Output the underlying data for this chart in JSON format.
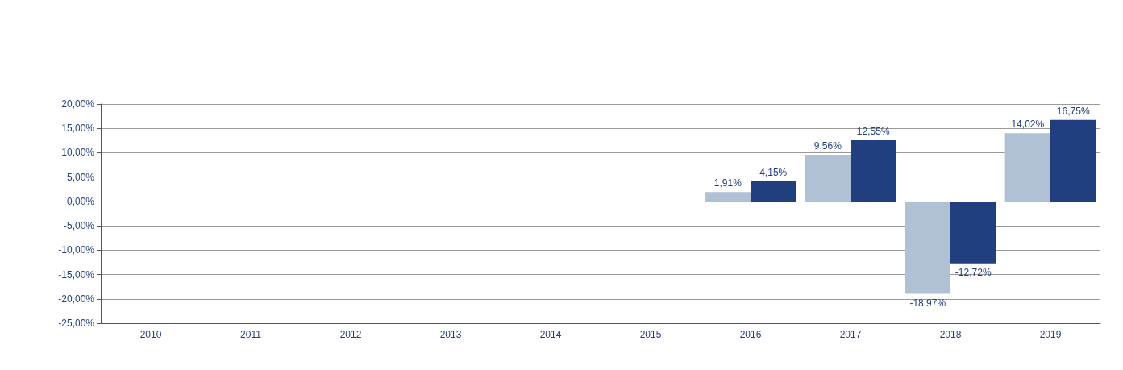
{
  "chart_data": {
    "type": "bar",
    "categories": [
      "2010",
      "2011",
      "2012",
      "2013",
      "2014",
      "2015",
      "2016",
      "2017",
      "2018",
      "2019"
    ],
    "series": [
      {
        "color": "#b0c1d6",
        "values": [
          null,
          null,
          null,
          null,
          null,
          null,
          1.91,
          9.56,
          -18.97,
          14.02
        ],
        "value_labels": [
          null,
          null,
          null,
          null,
          null,
          null,
          "1,91%",
          "9,56%",
          "-18,97%",
          "14,02%"
        ]
      },
      {
        "color": "#213f7f",
        "values": [
          null,
          null,
          null,
          null,
          null,
          null,
          4.15,
          12.55,
          -12.72,
          16.75
        ],
        "value_labels": [
          null,
          null,
          null,
          null,
          null,
          null,
          "4,15%",
          "12,55%",
          "-12,72%",
          "16,75%"
        ]
      }
    ],
    "ylim": [
      -25,
      20
    ],
    "yticks": [
      {
        "value": -25,
        "label": "-25,00%"
      },
      {
        "value": -20,
        "label": "-20,00%"
      },
      {
        "value": -15,
        "label": "-15,00%"
      },
      {
        "value": -10,
        "label": "-10,00%"
      },
      {
        "value": -5,
        "label": "-5,00%"
      },
      {
        "value": 0,
        "label": "0,00%"
      },
      {
        "value": 5,
        "label": "5,00%"
      },
      {
        "value": 10,
        "label": "10,00%"
      },
      {
        "value": 15,
        "label": "15,00%"
      },
      {
        "value": 20,
        "label": "20,00%"
      }
    ],
    "grid": "y"
  }
}
